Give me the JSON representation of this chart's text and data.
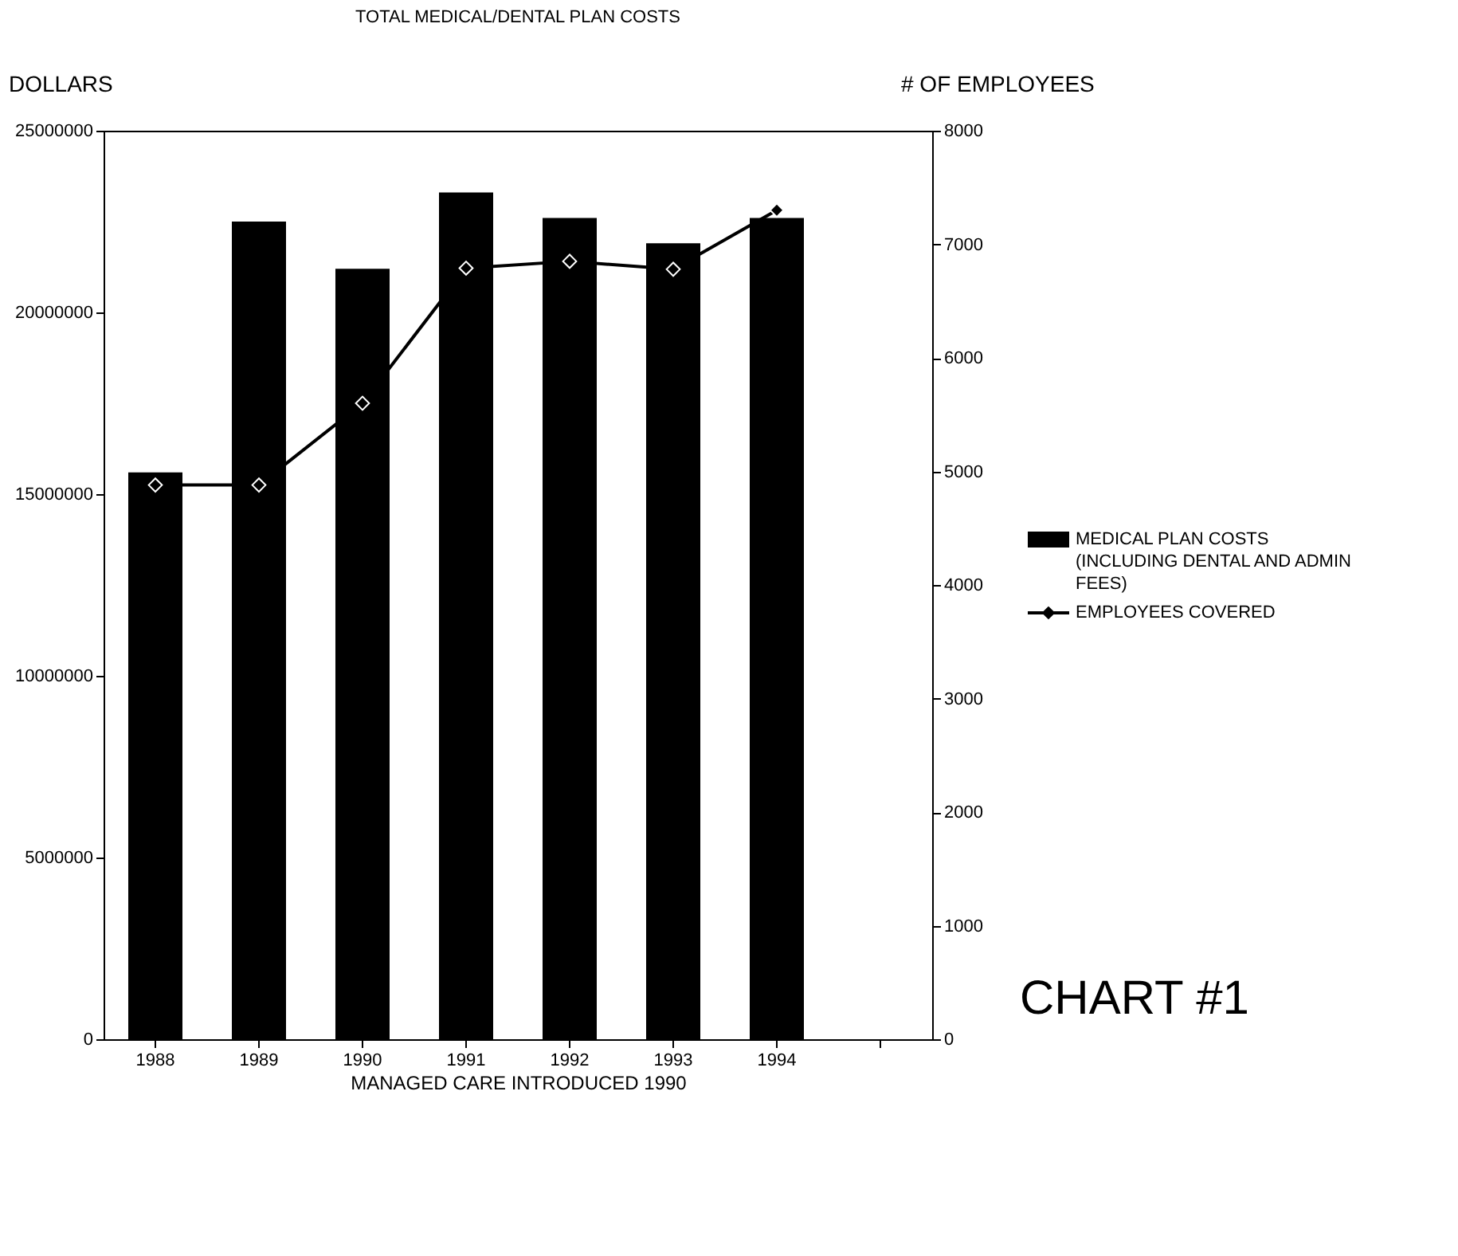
{
  "chart_data": {
    "type": "bar",
    "title": "TOTAL MEDICAL/DENTAL PLAN COSTS",
    "xlabel": "MANAGED CARE INTRODUCED 1990",
    "ylabel": "DOLLARS",
    "y2label": "# OF EMPLOYEES",
    "categories": [
      "1988",
      "1989",
      "1990",
      "1991",
      "1992",
      "1993",
      "1994",
      null
    ],
    "series": [
      {
        "name": "MEDICAL PLAN COSTS (INCLUDING DENTAL AND ADMIN FEES)",
        "color": "#000000",
        "values": [
          15600000,
          22500000,
          21200000,
          23300000,
          22600000,
          21900000,
          22600000,
          null
        ]
      },
      {
        "name": "EMPLOYEES COVERED",
        "type": "line",
        "axis": "y2",
        "color": "#000000",
        "marker": "diamond",
        "values": [
          4880,
          4880,
          5600,
          6790,
          6850,
          6780,
          7300,
          null
        ]
      }
    ],
    "ylim": [
      0,
      25000000
    ],
    "yticks": [
      0,
      5000000,
      10000000,
      15000000,
      20000000,
      25000000
    ],
    "y2lim": [
      0,
      8000
    ],
    "y2ticks": [
      0,
      1000,
      2000,
      3000,
      4000,
      5000,
      6000,
      7000,
      8000
    ],
    "legend": "right",
    "grid": false,
    "annotations": [
      "CHART #1"
    ]
  }
}
